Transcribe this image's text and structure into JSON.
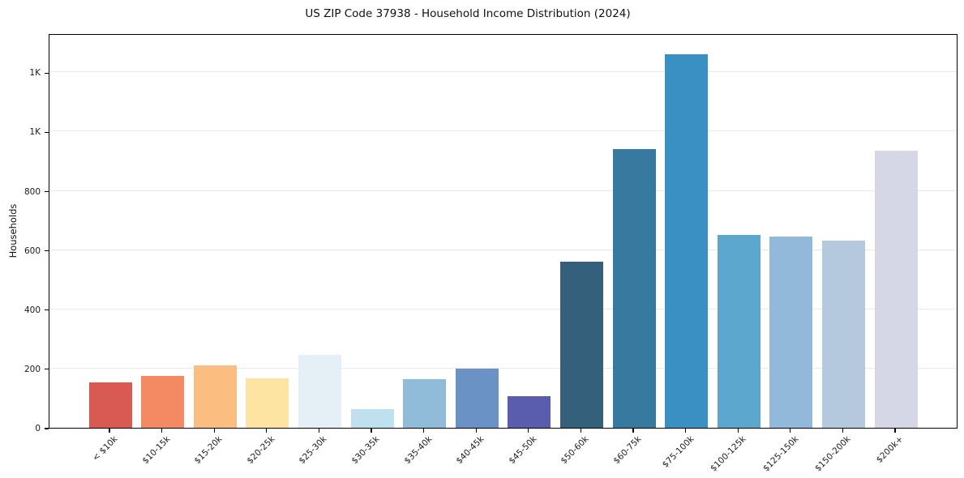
{
  "figure": {
    "title": "US ZIP Code 37938 - Household Income Distribution (2024)",
    "y_axis_label": "Households"
  },
  "chart_data": {
    "type": "bar",
    "title": "US ZIP Code 37938 - Household Income Distribution (2024)",
    "xlabel": "",
    "ylabel": "Households",
    "categories": [
      "< $10k",
      "$10-15k",
      "$15-20k",
      "$20-25k",
      "$25-30k",
      "$30-35k",
      "$35-40k",
      "$40-45k",
      "$45-50k",
      "$50-60k",
      "$60-75k",
      "$75-100k",
      "$100-125k",
      "$125-150k",
      "$150-200k",
      "$200k+"
    ],
    "values": [
      152,
      176,
      212,
      167,
      246,
      62,
      164,
      201,
      106,
      560,
      940,
      1262,
      651,
      646,
      633,
      935
    ],
    "bar_colors": [
      "#d95a52",
      "#f48a64",
      "#fcbd80",
      "#fde4a2",
      "#e4f0f6",
      "#bfe0ee",
      "#90bcd9",
      "#6b92c4",
      "#5a5dad",
      "#34607b",
      "#38799f",
      "#3a90c2",
      "#5ca7cd",
      "#92b9da",
      "#b4c8de",
      "#d6d7e6"
    ],
    "ylim": [
      0,
      1332
    ],
    "yticks": [
      {
        "value": 0,
        "label": "0"
      },
      {
        "value": 200,
        "label": "200"
      },
      {
        "value": 400,
        "label": "400"
      },
      {
        "value": 600,
        "label": "600"
      },
      {
        "value": 800,
        "label": "800"
      },
      {
        "value": 1000,
        "label": "1K"
      },
      {
        "value": 1200,
        "label": "1K"
      }
    ],
    "grid": "horizontal",
    "legend": "none",
    "colors": {
      "background": "#ffffff",
      "grid": "#e7e7ec",
      "axis": "#000000",
      "text": "#1a1a1a"
    }
  }
}
